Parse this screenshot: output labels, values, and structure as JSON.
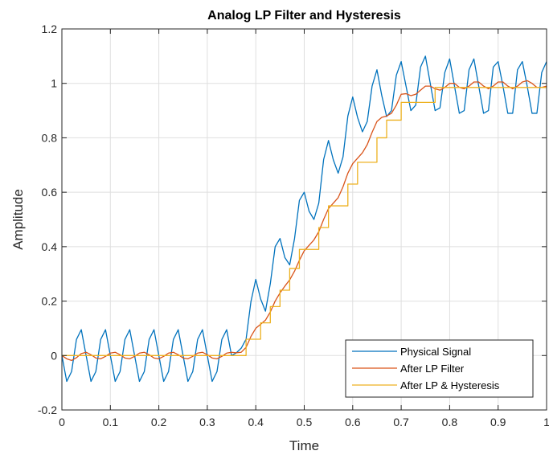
{
  "chart_data": {
    "type": "line",
    "title": "Analog LP Filter and Hysteresis",
    "xlabel": "Time",
    "ylabel": "Amplitude",
    "xlim": [
      0,
      1
    ],
    "ylim": [
      -0.2,
      1.2
    ],
    "xticks": [
      0,
      0.1,
      0.2,
      0.3,
      0.4,
      0.5,
      0.6,
      0.7,
      0.8,
      0.9,
      1
    ],
    "yticks": [
      -0.2,
      0,
      0.2,
      0.4,
      0.6,
      0.8,
      1,
      1.2
    ],
    "xtick_labels": [
      "0",
      "0.1",
      "0.2",
      "0.3",
      "0.4",
      "0.5",
      "0.6",
      "0.7",
      "0.8",
      "0.9",
      "1"
    ],
    "ytick_labels": [
      "-0.2",
      "0",
      "0.2",
      "0.4",
      "0.6",
      "0.8",
      "1",
      "1.2"
    ],
    "grid": true,
    "legend_position": "bottom-right",
    "series": [
      {
        "name": "Physical Signal",
        "color": "#0072BD",
        "x": [
          0,
          0.01,
          0.02,
          0.03,
          0.04,
          0.05,
          0.06,
          0.07,
          0.08,
          0.09,
          0.1,
          0.11,
          0.12,
          0.13,
          0.14,
          0.15,
          0.16,
          0.17,
          0.18,
          0.19,
          0.2,
          0.21,
          0.22,
          0.23,
          0.24,
          0.25,
          0.26,
          0.27,
          0.28,
          0.29,
          0.3,
          0.31,
          0.32,
          0.33,
          0.34,
          0.35,
          0.36,
          0.37,
          0.38,
          0.39,
          0.4,
          0.41,
          0.42,
          0.43,
          0.44,
          0.45,
          0.46,
          0.47,
          0.48,
          0.49,
          0.5,
          0.51,
          0.52,
          0.53,
          0.54,
          0.55,
          0.56,
          0.57,
          0.58,
          0.59,
          0.6,
          0.61,
          0.62,
          0.63,
          0.64,
          0.65,
          0.66,
          0.67,
          0.68,
          0.69,
          0.7,
          0.71,
          0.72,
          0.73,
          0.74,
          0.75,
          0.76,
          0.77,
          0.78,
          0.79,
          0.8,
          0.81,
          0.82,
          0.83,
          0.84,
          0.85,
          0.86,
          0.87,
          0.88,
          0.89,
          0.9,
          0.91,
          0.92,
          0.93,
          0.94,
          0.95,
          0.96,
          0.97,
          0.98,
          0.99,
          1
        ],
        "y": [
          0,
          -0.095,
          -0.059,
          0.059,
          0.095,
          0,
          -0.095,
          -0.059,
          0.059,
          0.095,
          0,
          -0.095,
          -0.059,
          0.059,
          0.095,
          0,
          -0.095,
          -0.059,
          0.059,
          0.095,
          0,
          -0.095,
          -0.059,
          0.059,
          0.095,
          0,
          -0.095,
          -0.059,
          0.059,
          0.095,
          0,
          -0.095,
          -0.059,
          0.059,
          0.095,
          0,
          0.01,
          0.027,
          0.06,
          0.198,
          0.28,
          0.208,
          0.163,
          0.264,
          0.4,
          0.43,
          0.36,
          0.333,
          0.43,
          0.57,
          0.6,
          0.53,
          0.5,
          0.56,
          0.72,
          0.79,
          0.719,
          0.67,
          0.73,
          0.88,
          0.95,
          0.875,
          0.822,
          0.86,
          0.99,
          1.05,
          0.955,
          0.878,
          0.9,
          1.03,
          1.08,
          0.99,
          0.9,
          0.92,
          1.06,
          1.1,
          1.0,
          0.9,
          0.91,
          1.04,
          1.09,
          0.99,
          0.89,
          0.9,
          1.05,
          1.09,
          0.99,
          0.89,
          0.9,
          1.06,
          1.08,
          0.99,
          0.89,
          0.89,
          1.05,
          1.08,
          0.99,
          0.89,
          0.89,
          1.04,
          1.08
        ]
      },
      {
        "name": "After LP Filter",
        "color": "#D95319",
        "x": [
          0,
          0.01,
          0.02,
          0.03,
          0.04,
          0.05,
          0.06,
          0.07,
          0.08,
          0.09,
          0.1,
          0.11,
          0.12,
          0.13,
          0.14,
          0.15,
          0.16,
          0.17,
          0.18,
          0.19,
          0.2,
          0.21,
          0.22,
          0.23,
          0.24,
          0.25,
          0.26,
          0.27,
          0.28,
          0.29,
          0.3,
          0.31,
          0.32,
          0.33,
          0.34,
          0.35,
          0.36,
          0.37,
          0.38,
          0.39,
          0.4,
          0.41,
          0.42,
          0.43,
          0.44,
          0.45,
          0.46,
          0.47,
          0.48,
          0.49,
          0.5,
          0.51,
          0.52,
          0.53,
          0.54,
          0.55,
          0.56,
          0.57,
          0.58,
          0.59,
          0.6,
          0.61,
          0.62,
          0.63,
          0.64,
          0.65,
          0.66,
          0.67,
          0.68,
          0.69,
          0.7,
          0.71,
          0.72,
          0.73,
          0.74,
          0.75,
          0.76,
          0.77,
          0.78,
          0.79,
          0.8,
          0.81,
          0.82,
          0.83,
          0.84,
          0.85,
          0.86,
          0.87,
          0.88,
          0.89,
          0.9,
          0.91,
          0.92,
          0.93,
          0.94,
          0.95,
          0.96,
          0.97,
          0.98,
          0.99,
          1
        ],
        "y": [
          0,
          -0.012,
          -0.018,
          -0.008,
          0.007,
          0.012,
          0.003,
          -0.009,
          -0.012,
          -0.003,
          0.009,
          0.012,
          0.003,
          -0.009,
          -0.012,
          -0.003,
          0.009,
          0.012,
          0.003,
          -0.009,
          -0.012,
          -0.003,
          0.009,
          0.012,
          0.003,
          -0.009,
          -0.012,
          -0.003,
          0.009,
          0.012,
          0.003,
          -0.009,
          -0.012,
          -0.003,
          0.009,
          0.012,
          0.01,
          0.012,
          0.03,
          0.07,
          0.1,
          0.115,
          0.13,
          0.16,
          0.2,
          0.23,
          0.255,
          0.278,
          0.31,
          0.35,
          0.385,
          0.405,
          0.425,
          0.455,
          0.5,
          0.54,
          0.56,
          0.58,
          0.62,
          0.67,
          0.705,
          0.725,
          0.745,
          0.775,
          0.82,
          0.86,
          0.875,
          0.88,
          0.89,
          0.92,
          0.96,
          0.962,
          0.955,
          0.96,
          0.975,
          0.99,
          0.99,
          0.98,
          0.975,
          0.985,
          1.0,
          1.0,
          0.985,
          0.98,
          0.99,
          1.005,
          1.005,
          0.99,
          0.98,
          0.99,
          1.005,
          1.005,
          0.99,
          0.98,
          0.99,
          1.005,
          1.01,
          1.0,
          0.985,
          0.985,
          0.99
        ]
      },
      {
        "name": "After LP & Hysteresis",
        "color": "#EDB120",
        "x": [
          0,
          0.38,
          0.38,
          0.41,
          0.41,
          0.43,
          0.43,
          0.45,
          0.45,
          0.47,
          0.47,
          0.49,
          0.49,
          0.51,
          0.51,
          0.53,
          0.53,
          0.55,
          0.55,
          0.57,
          0.57,
          0.59,
          0.59,
          0.61,
          0.61,
          0.63,
          0.63,
          0.65,
          0.65,
          0.67,
          0.67,
          0.7,
          0.7,
          0.74,
          0.74,
          0.77,
          0.77,
          1.0
        ],
        "y": [
          0,
          0,
          0.06,
          0.06,
          0.12,
          0.12,
          0.18,
          0.18,
          0.24,
          0.24,
          0.32,
          0.32,
          0.39,
          0.39,
          0.39,
          0.39,
          0.47,
          0.47,
          0.55,
          0.55,
          0.55,
          0.55,
          0.63,
          0.63,
          0.71,
          0.71,
          0.71,
          0.71,
          0.8,
          0.8,
          0.865,
          0.865,
          0.93,
          0.93,
          0.93,
          0.93,
          0.985,
          0.985
        ]
      }
    ]
  }
}
